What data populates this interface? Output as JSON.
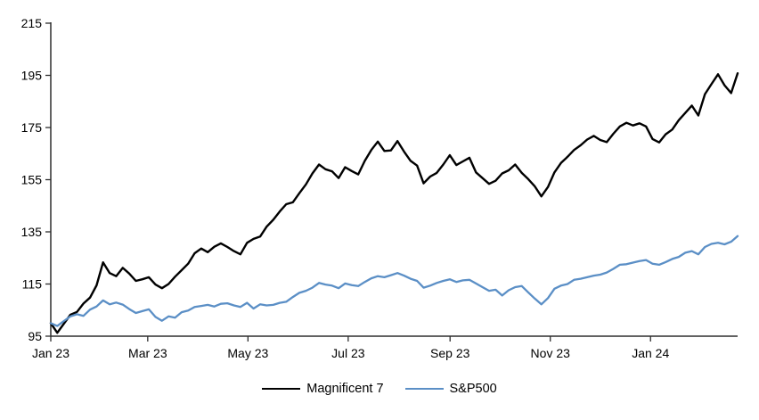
{
  "chart_data": {
    "type": "line",
    "title": "",
    "xlabel": "",
    "ylabel": "",
    "grid": false,
    "legend_position": "bottom-center",
    "x_axis": {
      "tick_labels": [
        "Jan 23",
        "Mar 23",
        "May 23",
        "Jul 23",
        "Sep 23",
        "Nov 23",
        "Jan 24"
      ],
      "tick_days": [
        0,
        59,
        120,
        181,
        243,
        304,
        365
      ],
      "domain_days": [
        0,
        418
      ]
    },
    "y_axis": {
      "tick_labels": [
        "95",
        "115",
        "135",
        "155",
        "175",
        "195",
        "215"
      ],
      "ticks": [
        95,
        115,
        135,
        155,
        175,
        195,
        215
      ],
      "range": [
        95,
        215
      ]
    },
    "index_base": 100,
    "series": [
      {
        "name": "Magnificent 7",
        "color": "#000000",
        "line_width": 2.4,
        "step_days": 3.981,
        "values": [
          100,
          96.3,
          99.8,
          103.2,
          104.3,
          107.5,
          109.8,
          114.5,
          123.3,
          119.2,
          118.0,
          121.2,
          119.0,
          116.2,
          116.8,
          117.6,
          114.8,
          113.4,
          115.0,
          117.8,
          120.3,
          122.8,
          126.8,
          128.6,
          127.2,
          129.3,
          130.6,
          129.2,
          127.6,
          126.4,
          130.8,
          132.3,
          133.2,
          137.0,
          139.6,
          142.8,
          145.6,
          146.3,
          149.8,
          153.2,
          157.4,
          160.8,
          159.0,
          158.2,
          155.6,
          159.8,
          158.3,
          157.0,
          162.2,
          166.4,
          169.6,
          166.0,
          166.2,
          169.8,
          165.8,
          162.2,
          160.4,
          153.6,
          156.2,
          157.6,
          160.8,
          164.4,
          160.6,
          162.0,
          163.4,
          157.8,
          155.6,
          153.4,
          154.6,
          157.4,
          158.6,
          160.8,
          157.6,
          155.2,
          152.4,
          148.6,
          152.2,
          157.8,
          161.4,
          163.8,
          166.4,
          168.2,
          170.4,
          171.8,
          170.2,
          169.4,
          172.6,
          175.4,
          176.8,
          175.8,
          176.6,
          175.4,
          170.6,
          169.3,
          172.4,
          174.2,
          177.8,
          180.6,
          183.4,
          179.6,
          187.8,
          191.6,
          195.4,
          191.2,
          188.2,
          195.8
        ]
      },
      {
        "name": "S&P500",
        "color": "#5b8fc6",
        "line_width": 2.3,
        "step_days": 3.981,
        "values": [
          100,
          98.9,
          100.8,
          102.6,
          103.4,
          102.8,
          105.2,
          106.4,
          108.7,
          107.2,
          107.9,
          107.1,
          105.4,
          103.9,
          104.6,
          105.3,
          102.4,
          100.9,
          102.6,
          102.1,
          104.2,
          104.8,
          106.2,
          106.6,
          107.0,
          106.4,
          107.4,
          107.6,
          106.8,
          106.2,
          107.8,
          105.6,
          107.2,
          106.8,
          107.0,
          107.8,
          108.2,
          110.0,
          111.6,
          112.4,
          113.6,
          115.4,
          114.8,
          114.4,
          113.4,
          115.2,
          114.6,
          114.2,
          115.8,
          117.2,
          118.0,
          117.6,
          118.4,
          119.2,
          118.2,
          117.0,
          116.2,
          113.6,
          114.4,
          115.4,
          116.2,
          116.8,
          115.8,
          116.4,
          116.6,
          115.2,
          113.8,
          112.4,
          112.8,
          110.6,
          112.6,
          113.8,
          114.2,
          111.8,
          109.4,
          107.2,
          109.6,
          113.2,
          114.4,
          115.0,
          116.6,
          117.0,
          117.6,
          118.2,
          118.6,
          119.4,
          120.8,
          122.4,
          122.6,
          123.2,
          123.8,
          124.2,
          122.8,
          122.4,
          123.4,
          124.6,
          125.4,
          127.0,
          127.6,
          126.4,
          129.2,
          130.4,
          130.8,
          130.2,
          131.2,
          133.4
        ]
      }
    ],
    "axis_color": "#2e2e2e"
  },
  "legend": {
    "items": [
      {
        "label": "Magnificent 7",
        "color": "#000000"
      },
      {
        "label": "S&P500",
        "color": "#5b8fc6"
      }
    ]
  }
}
